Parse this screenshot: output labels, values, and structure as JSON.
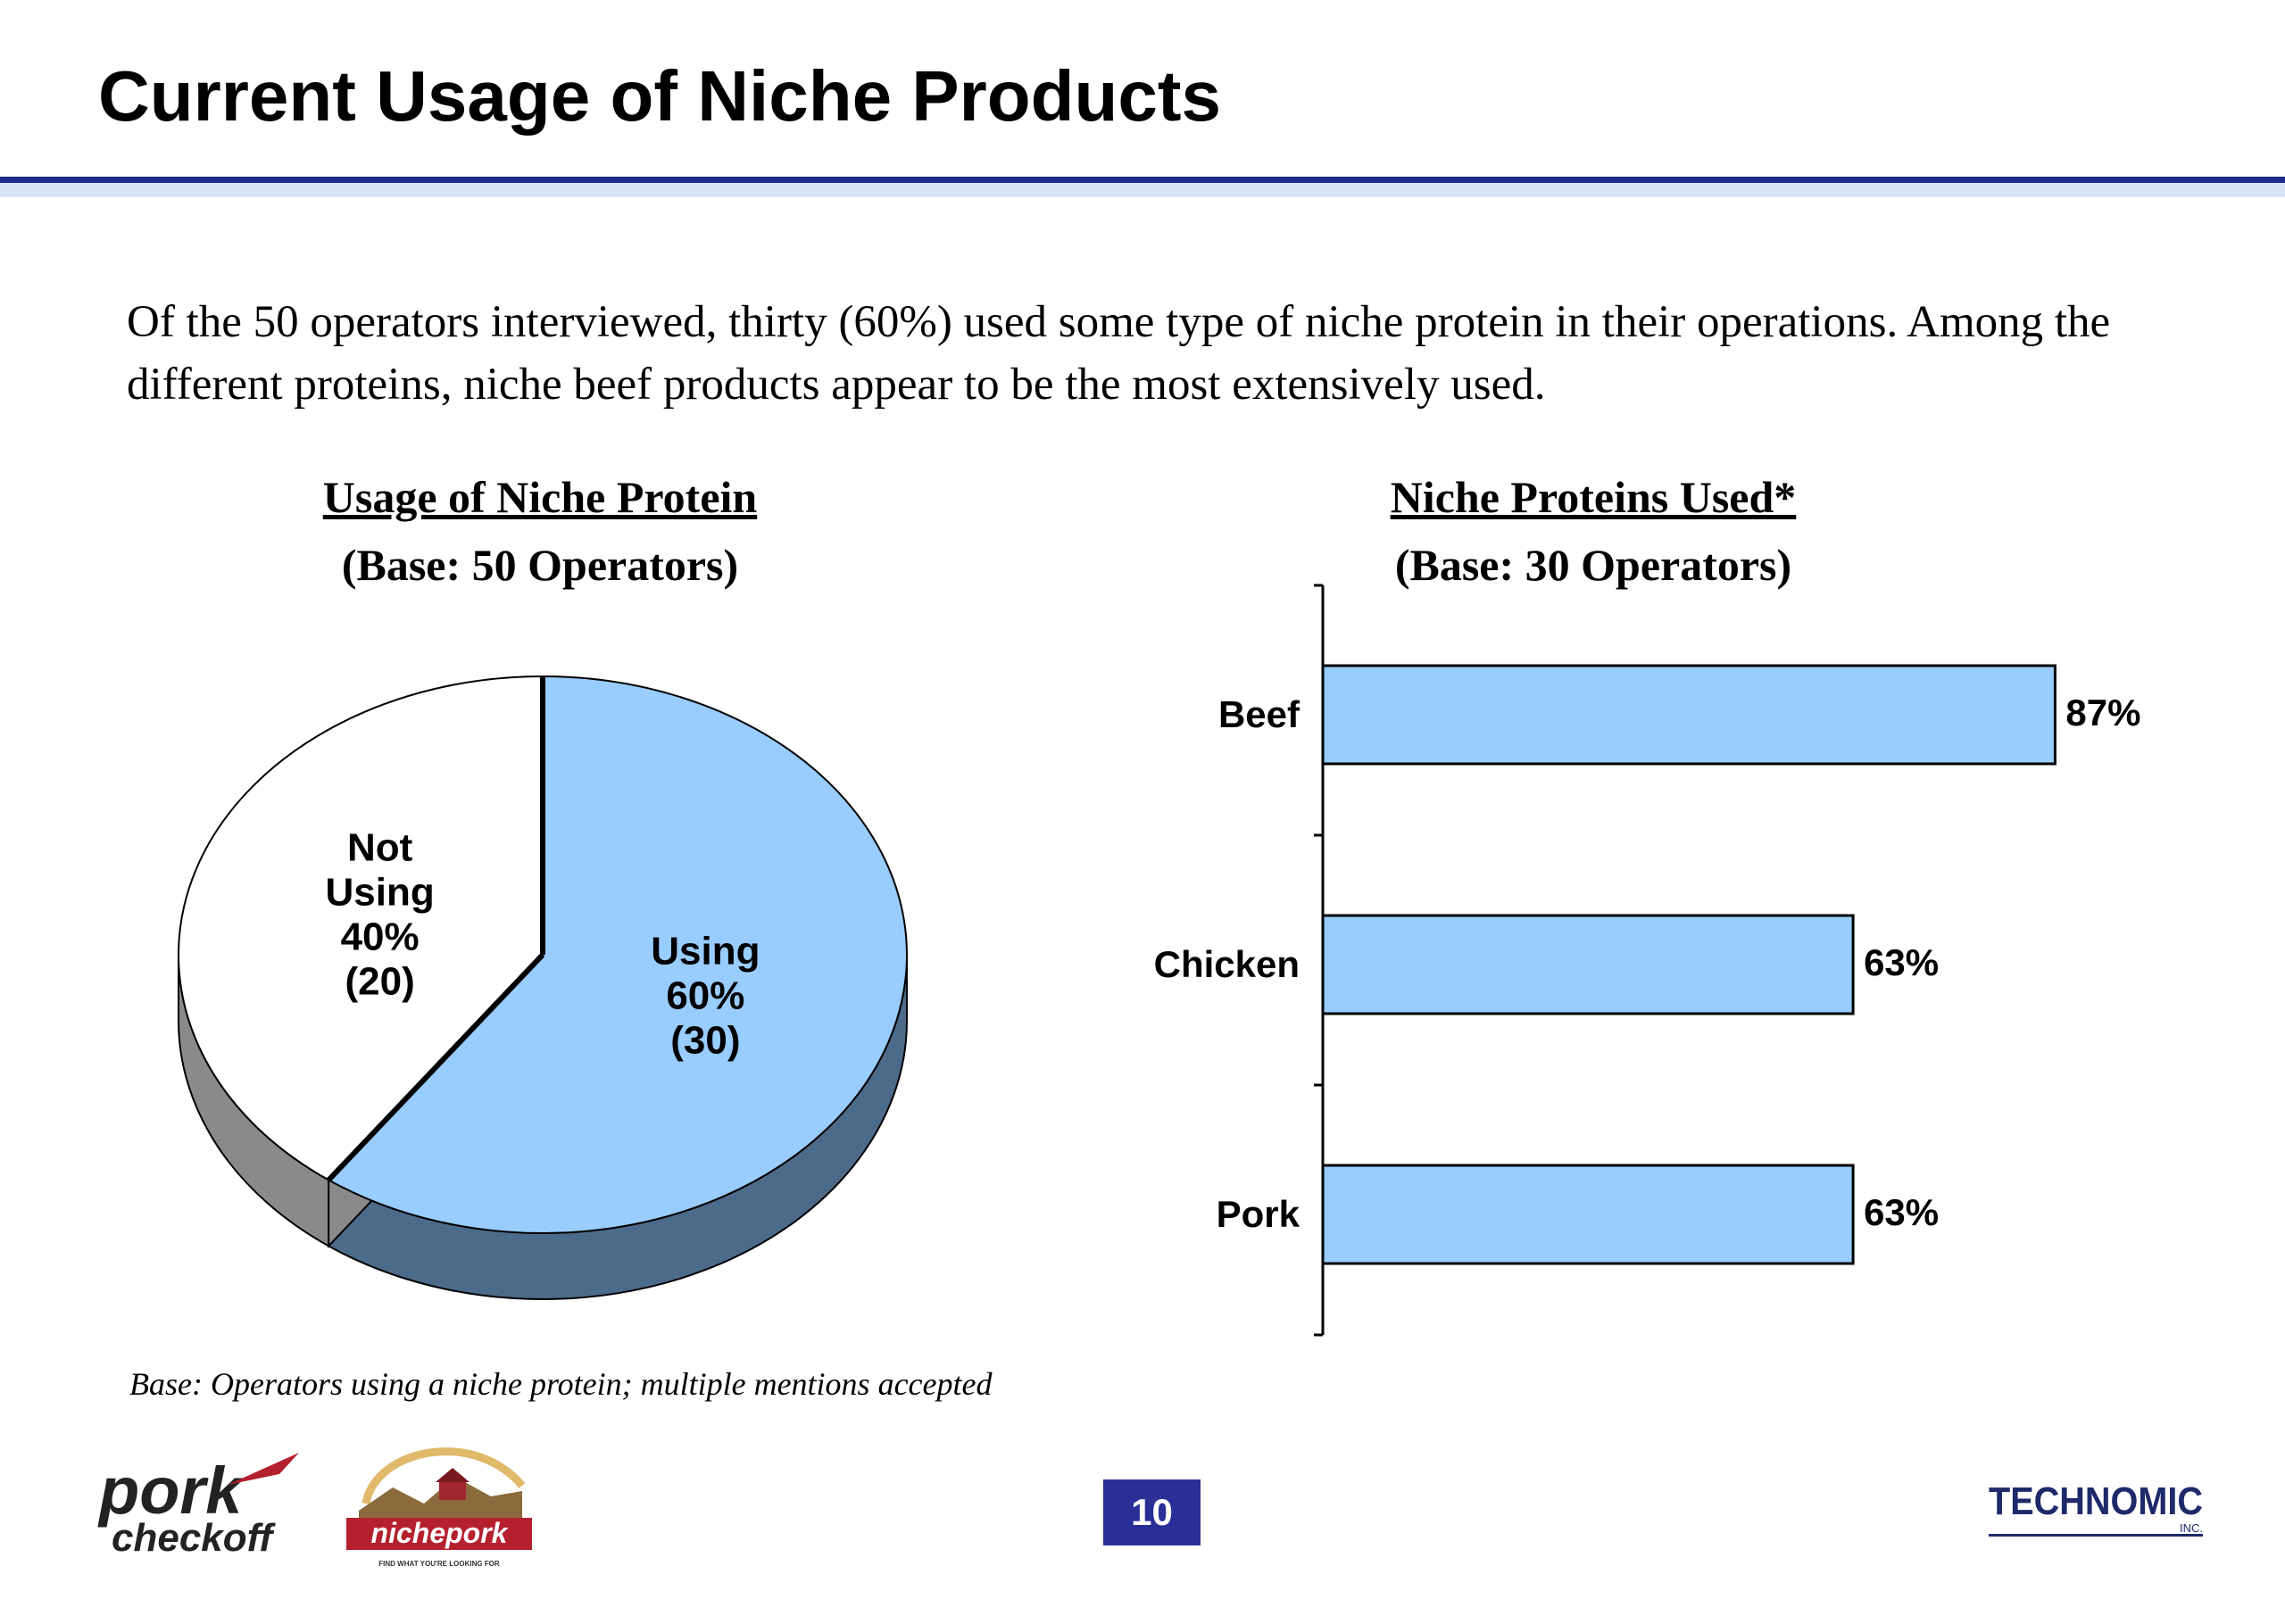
{
  "page": {
    "title": "Current Usage of Niche Products",
    "intro": "Of the 50 operators interviewed, thirty (60%) used some type of niche protein in their operations. Among the different proteins, niche beef products appear to be the most extensively used.",
    "footnote": "Base:  Operators using a niche protein; multiple mentions accepted",
    "page_number": "10"
  },
  "logos": {
    "pork_checkoff": [
      "pork",
      "checkoff"
    ],
    "nichepork": "nichepork",
    "nichepork_tagline": "FIND WHAT YOU'RE LOOKING FOR",
    "technomic": "TECHNOMIC",
    "technomic_suffix": "INC."
  },
  "colors": {
    "title_rule": "#1a2a86",
    "title_rule_light": "#d6e4f6",
    "bar_fill": "#99ccff",
    "pie_using": "#99ccff",
    "pie_using_side": "#4c6a8a",
    "pie_not_using": "#ffffff",
    "pie_not_using_side": "#8a8a8a",
    "page_number_bg": "#2a2f96",
    "brand_red": "#b5202e"
  },
  "chart_data": [
    {
      "type": "pie",
      "title": "Usage of Niche Protein",
      "subtitle": "(Base: 50 Operators)",
      "slices": [
        {
          "name": "Using",
          "percent": 60,
          "count": 30,
          "label_lines": [
            "Using",
            "60%",
            "(30)"
          ]
        },
        {
          "name": "Not Using",
          "percent": 40,
          "count": 20,
          "label_lines": [
            "Not",
            "Using",
            "40%",
            "(20)"
          ]
        }
      ]
    },
    {
      "type": "bar",
      "orientation": "horizontal",
      "title": "Niche Proteins Used*",
      "subtitle": "(Base: 30 Operators)",
      "categories": [
        "Beef",
        "Chicken",
        "Pork"
      ],
      "values": [
        87,
        63,
        63
      ],
      "value_labels": [
        "87%",
        "63%",
        "63%"
      ],
      "xlim": [
        0,
        100
      ],
      "grid": false
    }
  ]
}
